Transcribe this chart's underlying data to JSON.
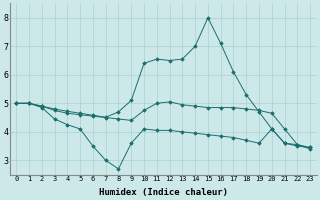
{
  "xlabel": "Humidex (Indice chaleur)",
  "ylabel": "",
  "bg_color": "#cce8e8",
  "grid_color": "#aad0d0",
  "line_color": "#1a6e6e",
  "x": [
    0,
    1,
    2,
    3,
    4,
    5,
    6,
    7,
    8,
    9,
    10,
    11,
    12,
    13,
    14,
    15,
    16,
    17,
    18,
    19,
    20,
    21,
    22,
    23
  ],
  "line1": [
    5.0,
    5.0,
    4.85,
    4.45,
    4.25,
    4.1,
    3.5,
    3.0,
    2.7,
    3.6,
    4.1,
    4.05,
    4.05,
    4.0,
    3.95,
    3.9,
    3.85,
    3.8,
    3.7,
    3.6,
    4.1,
    3.6,
    3.5,
    3.45
  ],
  "line2": [
    5.0,
    5.0,
    4.9,
    4.75,
    4.65,
    4.6,
    4.55,
    4.5,
    4.45,
    4.4,
    4.75,
    5.0,
    5.05,
    4.95,
    4.9,
    4.85,
    4.85,
    4.85,
    4.8,
    4.75,
    4.65,
    4.1,
    3.55,
    3.45
  ],
  "line3": [
    5.0,
    5.0,
    4.9,
    4.8,
    4.72,
    4.65,
    4.58,
    4.51,
    4.7,
    5.1,
    6.4,
    6.55,
    6.5,
    6.55,
    7.0,
    8.0,
    7.1,
    6.1,
    5.3,
    4.7,
    4.1,
    3.6,
    3.55,
    3.4
  ],
  "ylim": [
    2.5,
    8.5
  ],
  "xlim": [
    -0.5,
    23.5
  ],
  "tick_fontsize": 5,
  "label_fontsize": 6.5
}
